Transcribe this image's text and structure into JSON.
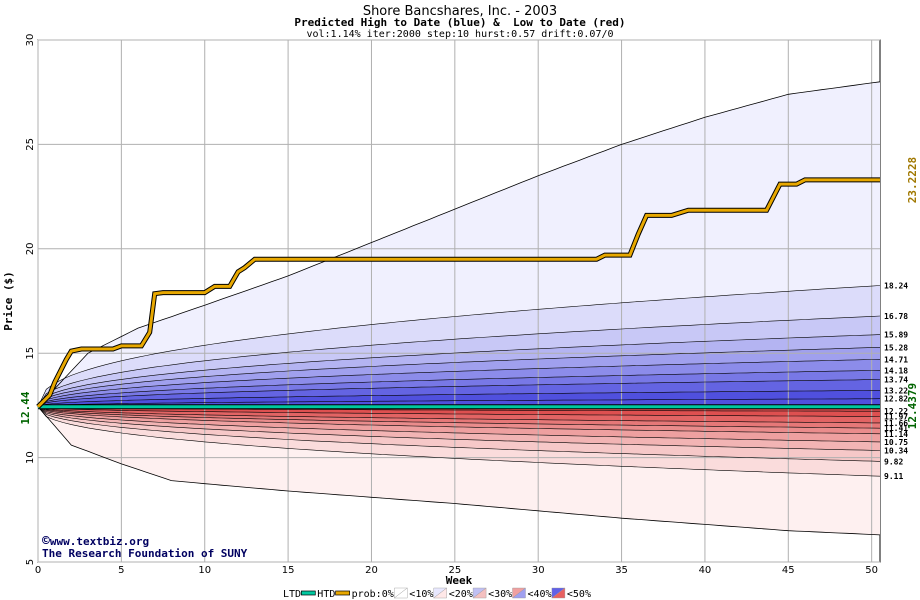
{
  "chart_data": {
    "type": "area",
    "title": "Shore Bancshares, Inc. - 2003",
    "subtitle": "Predicted High to Date (blue) &  Low to Date (red)",
    "params": "vol:1.14% iter:2000 step:10 hurst:0.57 drift:0.07/0",
    "xlabel": "Week",
    "ylabel": "Price ($)",
    "xlim": [
      0,
      50.5
    ],
    "ylim": [
      5,
      30
    ],
    "x_ticks": [
      "0",
      "5",
      "10",
      "15",
      "20",
      "25",
      "30",
      "35",
      "40",
      "45",
      "50"
    ],
    "y_ticks": [
      "5",
      "10",
      "15",
      "20",
      "25",
      "30"
    ],
    "grid": true,
    "start_price": "12.44",
    "start_value": 12.44,
    "htd_final_label": "23.2228",
    "htd_final": 23.2228,
    "ltd_final_label": "12.4379",
    "ltd_final": 12.4379,
    "upper_envelope": {
      "x": [
        0,
        3,
        6,
        10,
        15,
        20,
        25,
        30,
        35,
        40,
        45,
        50.5
      ],
      "y": [
        12.44,
        15,
        16.2,
        17.3,
        18.7,
        20.3,
        21.9,
        23.5,
        25,
        26.3,
        27.4,
        28
      ]
    },
    "lower_envelope": {
      "x": [
        0,
        2,
        5,
        8,
        10,
        15,
        20,
        25,
        30,
        35,
        40,
        45,
        50.5
      ],
      "y": [
        12.44,
        10.6,
        9.7,
        8.9,
        8.75,
        8.4,
        8.1,
        7.8,
        7.45,
        7.1,
        6.8,
        6.5,
        6.3
      ]
    },
    "upper_quantiles": [
      18.24,
      16.78,
      15.89,
      15.28,
      14.71,
      14.18,
      13.74,
      13.22,
      12.82
    ],
    "upper_quantile_labels": [
      "18.24",
      "16.78",
      "15.89",
      "15.28",
      "14.71",
      "14.18",
      "13.74",
      "13.22",
      "12.82"
    ],
    "lower_quantiles": [
      12.22,
      11.97,
      11.66,
      11.41,
      11.14,
      10.75,
      10.34,
      9.82,
      9.11
    ],
    "lower_quantile_labels": [
      "12.22",
      "11.97",
      "11.66",
      "11.41",
      "11.14",
      "10.75",
      "10.34",
      "9.82",
      "9.11"
    ],
    "htd_path": {
      "x": [
        0,
        0.7,
        1,
        1.7,
        2,
        2.6,
        4.5,
        5,
        6.2,
        6.7,
        7,
        7.5,
        10,
        10.6,
        11.5,
        12,
        12.4,
        13,
        17,
        20,
        25,
        30,
        33.5,
        34,
        35.5,
        36,
        36.5,
        38,
        39,
        40,
        43.7,
        44.5,
        45.5,
        46,
        50.5
      ],
      "y": [
        12.44,
        13,
        13.6,
        14.7,
        15.1,
        15.2,
        15.2,
        15.35,
        15.35,
        16,
        17.85,
        17.9,
        17.9,
        18.2,
        18.2,
        18.9,
        19.1,
        19.5,
        19.5,
        19.5,
        19.5,
        19.5,
        19.5,
        19.7,
        19.7,
        20.7,
        21.6,
        21.6,
        21.85,
        21.85,
        21.85,
        23.1,
        23.1,
        23.3,
        23.3
      ]
    },
    "ltd_path": {
      "x": [
        0,
        50.5
      ],
      "y": [
        12.44,
        12.4379
      ]
    },
    "colors": {
      "band_blue": [
        "#f0f0fe",
        "#dcdcfa",
        "#c8c8f6",
        "#b4b4f2",
        "#a0a0ee",
        "#8c8cea",
        "#7878e6",
        "#6464e2",
        "#5050de"
      ],
      "band_red": [
        "#fef0f0",
        "#fadcdc",
        "#f6c8c8",
        "#f2b4b4",
        "#eea0a0",
        "#ea8c8c",
        "#e67878",
        "#e26464",
        "#de5050"
      ],
      "htd": "#e8a800",
      "ltd": "#00c8a0",
      "label_dark_green": "#006400",
      "label_gold": "#a07800"
    },
    "legend": {
      "ltd": "LTD",
      "htd": "HTD",
      "prob_prefix": "prob:0%",
      "buckets": [
        "<10%",
        "<20%",
        "<30%",
        "<40%",
        "<50%"
      ],
      "bucket_colors": [
        "#ffffff",
        "#e8e8ff",
        "#c0c0f4",
        "#f0a0a0",
        "#6060e8"
      ],
      "bucket_colors_b": [
        "#ffffff",
        "#ffe8e8",
        "#f4c0c0",
        "#a0a0f0",
        "#e86060"
      ]
    }
  },
  "watermark": {
    "copyright_symbol": "©",
    "site": "www.textbiz.org",
    "org": "The Research Foundation of SUNY"
  }
}
